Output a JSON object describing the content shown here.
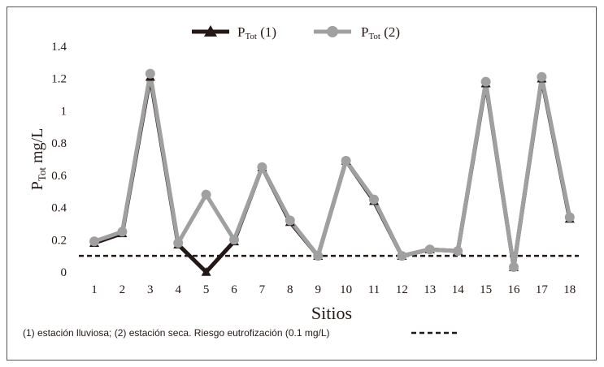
{
  "chart_data": {
    "type": "line",
    "legend_placement": "top-center",
    "xlabel": "Sitios",
    "ylabel": {
      "main": "P",
      "sub": "Tot",
      "unit": "mg/L"
    },
    "categories": [
      "1",
      "2",
      "3",
      "4",
      "5",
      "6",
      "7",
      "8",
      "9",
      "10",
      "11",
      "12",
      "13",
      "14",
      "15",
      "16",
      "17",
      "18"
    ],
    "ylim": [
      0,
      1.4
    ],
    "yticks": [
      "0",
      "0.2",
      "0.4",
      "0.6",
      "0.8",
      "1",
      "1.2",
      "1.4"
    ],
    "grid": false,
    "series": [
      {
        "name": "(1)",
        "legend_main": "P",
        "legend_sub": "Tot",
        "legend_suffix": "(1)",
        "color": "#231815",
        "marker": "triangle",
        "values": [
          0.18,
          0.24,
          1.21,
          0.17,
          0.0,
          0.19,
          0.65,
          0.31,
          0.1,
          0.69,
          0.44,
          0.1,
          0.14,
          0.13,
          1.17,
          0.03,
          1.2,
          0.33
        ]
      },
      {
        "name": "(2)",
        "legend_main": "P",
        "legend_sub": "Tot",
        "legend_suffix": "(2)",
        "color": "#a0a0a0",
        "marker": "circle",
        "values": [
          0.19,
          0.25,
          1.23,
          0.18,
          0.48,
          0.2,
          0.65,
          0.32,
          0.1,
          0.69,
          0.45,
          0.1,
          0.14,
          0.13,
          1.18,
          0.03,
          1.21,
          0.34
        ]
      }
    ],
    "threshold": {
      "value": 0.1,
      "style": "dashed",
      "color": "#231815"
    }
  },
  "footnote": "(1) estación lluviosa; (2) estación seca. Riesgo eutrofización (0.1 mg/L)"
}
